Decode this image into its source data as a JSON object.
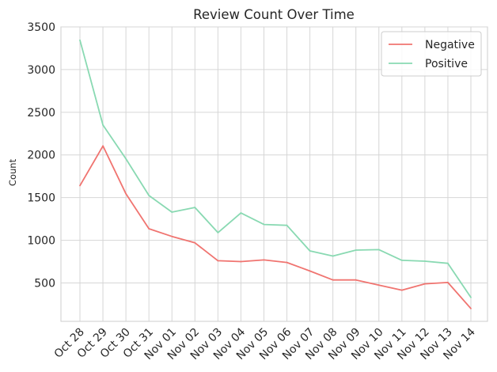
{
  "chart_data": {
    "type": "line",
    "title": "Review Count Over Time",
    "xlabel": "",
    "ylabel": "Count",
    "ylim": [
      50,
      3500
    ],
    "yticks": [
      500,
      1000,
      1500,
      2000,
      2500,
      3000,
      3500
    ],
    "grid": true,
    "legend_position": "top-right",
    "categories": [
      "Oct 28",
      "Oct 29",
      "Oct 30",
      "Oct 31",
      "Nov 01",
      "Nov 02",
      "Nov 03",
      "Nov 04",
      "Nov 05",
      "Nov 06",
      "Nov 07",
      "Nov 08",
      "Nov 09",
      "Nov 10",
      "Nov 11",
      "Nov 12",
      "Nov 13",
      "Nov 14"
    ],
    "series": [
      {
        "name": "Negative",
        "color": "#f07470",
        "values": [
          1640,
          2105,
          1545,
          1135,
          1045,
          970,
          760,
          750,
          770,
          740,
          640,
          535,
          535,
          475,
          415,
          490,
          505,
          200
        ]
      },
      {
        "name": "Positive",
        "color": "#89d9b2",
        "values": [
          3345,
          2350,
          1955,
          1525,
          1330,
          1385,
          1090,
          1320,
          1185,
          1175,
          875,
          815,
          885,
          890,
          765,
          755,
          730,
          330
        ]
      }
    ]
  }
}
